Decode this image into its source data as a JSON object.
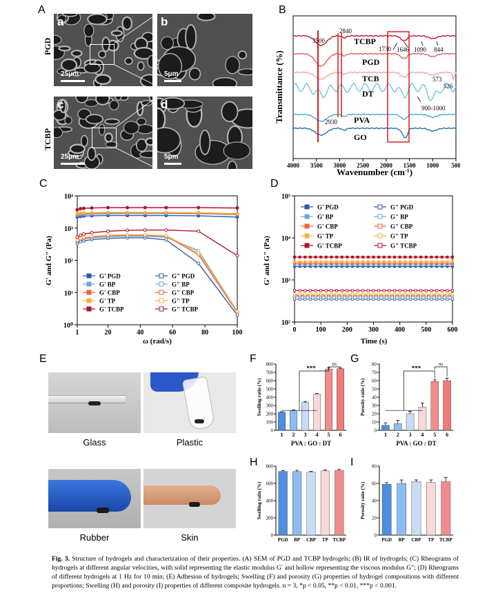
{
  "panelA": {
    "letter": "A",
    "rows": [
      {
        "label": "PGD",
        "sub": [
          {
            "letter": "a",
            "scale": "25μm"
          },
          {
            "letter": "b",
            "scale": "5μm"
          }
        ]
      },
      {
        "label": "TCBP",
        "sub": [
          {
            "letter": "c",
            "scale": "25μm"
          },
          {
            "letter": "d",
            "scale": "5μm"
          }
        ]
      }
    ]
  },
  "panelB": {
    "letter": "B",
    "ylabel": "Transmittance (%)",
    "xlabel": "Wavenumber (cm",
    "xlabel_sup": "-1",
    "xlabel_end": ")",
    "ticks": [
      "4000",
      "3500",
      "3000",
      "2500",
      "2000",
      "1500",
      "1000",
      "500"
    ],
    "traces": [
      "TCBP",
      "PGD",
      "TCB",
      "DT",
      "PVA",
      "GO"
    ],
    "annotations": [
      "3500",
      "2840",
      "1730",
      "1646",
      "1090",
      "844",
      "573",
      "526",
      "900-1000",
      "2930"
    ],
    "colors": [
      "#c8102e",
      "#e35b5b",
      "#f2a3a3",
      "#74c1e6",
      "#4aa6dc",
      "#1f6fb0"
    ]
  },
  "chart_data": [
    {
      "panel": "C",
      "type": "line",
      "xlabel": "ω (rad/s)",
      "ylabel": "G' and G\" (Pa)",
      "yscale": "log",
      "xlim": [
        1,
        100
      ],
      "ylim": [
        1,
        10000
      ],
      "xticks": [
        "1",
        "20",
        "40",
        "60",
        "80",
        "100"
      ],
      "yticks": [
        "10⁰",
        "10¹",
        "10²",
        "10³",
        "10⁴"
      ],
      "x": [
        1,
        3,
        5,
        10,
        20,
        32,
        43,
        56,
        76,
        100
      ],
      "series": [
        {
          "name": "G' PGD",
          "filled": true,
          "color": "#2f5aa8",
          "values": [
            2200,
            2300,
            2350,
            2400,
            2450,
            2450,
            2450,
            2450,
            2400,
            2200
          ]
        },
        {
          "name": "G\" PGD",
          "filled": false,
          "color": "#2f5aa8",
          "values": [
            330,
            380,
            400,
            440,
            480,
            500,
            500,
            430,
            80,
            2
          ]
        },
        {
          "name": "G' BP",
          "filled": true,
          "color": "#6ea8da",
          "values": [
            2500,
            2600,
            2650,
            2700,
            2750,
            2800,
            2800,
            2800,
            2800,
            2600
          ]
        },
        {
          "name": "G\" BP",
          "filled": false,
          "color": "#6ea8da",
          "values": [
            380,
            430,
            460,
            500,
            540,
            560,
            560,
            520,
            200,
            2.6
          ]
        },
        {
          "name": "G' CBP",
          "filled": true,
          "color": "#f0603a",
          "values": [
            2700,
            2800,
            2850,
            2900,
            2950,
            2950,
            2950,
            2950,
            2900,
            2700
          ]
        },
        {
          "name": "G\" CBP",
          "filled": false,
          "color": "#f0603a",
          "values": [
            400,
            460,
            490,
            530,
            580,
            600,
            600,
            560,
            150,
            2.4
          ]
        },
        {
          "name": "G' TP",
          "filled": true,
          "color": "#f5b040",
          "values": [
            2800,
            2900,
            2950,
            3000,
            3050,
            3050,
            3050,
            3050,
            3000,
            2800
          ]
        },
        {
          "name": "G\" TP",
          "filled": false,
          "color": "#f5b040",
          "values": [
            420,
            480,
            510,
            550,
            600,
            620,
            620,
            580,
            170,
            2.6
          ]
        },
        {
          "name": "G' TCBP",
          "filled": true,
          "color": "#b0122a",
          "values": [
            3700,
            4000,
            4100,
            4200,
            4300,
            4300,
            4300,
            4300,
            4300,
            4200
          ]
        },
        {
          "name": "G\" TCBP",
          "filled": false,
          "color": "#b0122a",
          "values": [
            520,
            600,
            650,
            720,
            800,
            850,
            870,
            870,
            800,
            140
          ]
        }
      ]
    },
    {
      "panel": "D",
      "type": "line",
      "xlabel": "Time (s)",
      "ylabel": "G' and G\" (Pa)",
      "yscale": "log",
      "xlim": [
        0,
        600
      ],
      "ylim": [
        100,
        100000
      ],
      "xticks": [
        "0",
        "100",
        "200",
        "300",
        "400",
        "500",
        "600"
      ],
      "yticks": [
        "10²",
        "10³",
        "10⁴",
        "10⁵"
      ],
      "series": [
        {
          "name": "G' PGD",
          "filled": true,
          "color": "#2f5aa8",
          "value": 2100
        },
        {
          "name": "G\" PGD",
          "filled": false,
          "color": "#2f5aa8",
          "value": 350
        },
        {
          "name": "G' BP",
          "filled": true,
          "color": "#6ea8da",
          "value": 2300
        },
        {
          "name": "G\" BP",
          "filled": false,
          "color": "#6ea8da",
          "value": 400
        },
        {
          "name": "G' CBP",
          "filled": true,
          "color": "#f0603a",
          "value": 2500
        },
        {
          "name": "G\" CBP",
          "filled": false,
          "color": "#f0603a",
          "value": 430
        },
        {
          "name": "G' TP",
          "filled": true,
          "color": "#f5b040",
          "value": 2700
        },
        {
          "name": "G\" TP",
          "filled": false,
          "color": "#f5b040",
          "value": 460
        },
        {
          "name": "G' TCBP",
          "filled": true,
          "color": "#b0122a",
          "value": 3500
        },
        {
          "name": "G\" TCBP",
          "filled": false,
          "color": "#b0122a",
          "value": 560
        }
      ]
    },
    {
      "panel": "F",
      "type": "bar",
      "ylabel": "Swelling ratio (%)",
      "xlabel": "PVA : GO : DT",
      "categories": [
        "1",
        "2",
        "3",
        "4",
        "5",
        "6"
      ],
      "values": [
        220,
        240,
        335,
        440,
        740,
        745
      ],
      "errors": [
        4,
        6,
        10,
        5,
        15,
        8
      ],
      "ylim": [
        0,
        800
      ],
      "yticks": [
        "0",
        "100",
        "200",
        "300",
        "400",
        "500",
        "600",
        "700",
        "800"
      ],
      "significance": [
        "***",
        "ns"
      ]
    },
    {
      "panel": "G",
      "type": "bar",
      "ylabel": "Porosity ratio (%)",
      "xlabel": "PVA : GO : DT",
      "categories": [
        "1",
        "2",
        "3",
        "4",
        "5",
        "6"
      ],
      "values": [
        6,
        8,
        20,
        28,
        59,
        60
      ],
      "errors": [
        3,
        4,
        3,
        5,
        2,
        3
      ],
      "ylim": [
        0,
        80
      ],
      "yticks": [
        "0",
        "10",
        "20",
        "30",
        "40",
        "50",
        "60",
        "70",
        "80"
      ],
      "significance": [
        "***",
        "ns"
      ]
    },
    {
      "panel": "H",
      "type": "bar",
      "ylabel": "Swelling ratio (%)",
      "categories": [
        "PGD",
        "BP",
        "CBP",
        "TP",
        "TCBP"
      ],
      "values": [
        738,
        738,
        732,
        745,
        750
      ],
      "errors": [
        12,
        14,
        8,
        10,
        14
      ],
      "ylim": [
        0,
        800
      ],
      "yticks": [
        "0",
        "200",
        "400",
        "600",
        "800"
      ]
    },
    {
      "panel": "I",
      "type": "bar",
      "ylabel": "Porosity ratio (%)",
      "categories": [
        "PGD",
        "BP",
        "CBP",
        "TP",
        "TCBP"
      ],
      "values": [
        59,
        60,
        62,
        61,
        62
      ],
      "errors": [
        2,
        4,
        2,
        3,
        5
      ],
      "ylim": [
        0,
        80
      ],
      "yticks": [
        "0",
        "20",
        "40",
        "60",
        "80"
      ]
    }
  ],
  "panelE": {
    "letter": "E",
    "captions": [
      "Glass",
      "Plastic",
      "Rubber",
      "Skin"
    ]
  },
  "letters": {
    "C": "C",
    "D": "D",
    "F": "F",
    "G": "G",
    "H": "H",
    "I": "I"
  },
  "bar_colors_6": [
    "#4d8fe0",
    "#8fbcf0",
    "#c9dcf5",
    "#f9d8d8",
    "#f28c8c",
    "#f07a7a"
  ],
  "bar_colors_5": [
    "#4d8fe0",
    "#8fbcf0",
    "#c9dcf5",
    "#f9d8d8",
    "#f28c8c"
  ],
  "caption": {
    "label": "Fig. 3.",
    "text": "Structure of hydrogels and characterization of their properties. (A) SEM of PGD and TCBP hydrogels; (B) IR of hydrogels; (C) Rheograms of hydrogels at different angular velocities, with solid representing the elastic modulus G′ and hollow representing the viscous modulus G″; (D) Rheograms of different hydrogels at 1 Hz for 10 min; (E) Adhesion of hydrogels; Swelling (F) and porosity (G) properties of hydrogel compositions with different proportions; Swelling (H) and porosity (I) properties of different composite hydrogels. n = 3, *p < 0.05, **p < 0.01, ***p < 0.001."
  }
}
